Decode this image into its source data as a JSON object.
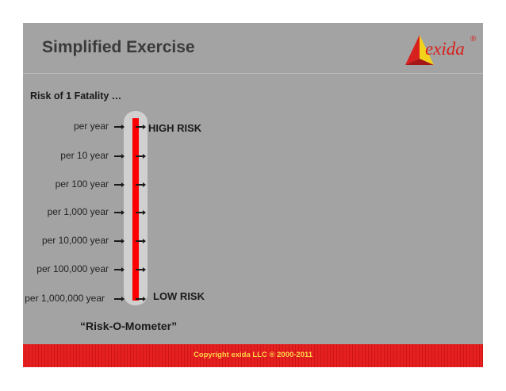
{
  "slide": {
    "title": "Simplified Exercise",
    "subtitle": "Risk of 1 Fatality …",
    "logo": {
      "text": "exida",
      "reg": "®",
      "colors": {
        "red": "#d8201f",
        "yellow": "#f2d21b"
      }
    },
    "scale_labels": [
      "per year",
      "per 10 year",
      "per 100 year",
      "per 1,000 year",
      "per 10,000 year",
      "per 100,000 year",
      "per 1,000,000 year"
    ],
    "high_risk": "HIGH RISK",
    "low_risk": "LOW RISK",
    "caption": "“Risk-O-Mometer”",
    "footer": {
      "copyright": "Copyright exida LLC ® 2000-2011"
    }
  },
  "colors": {
    "background": "#a3a3a3",
    "mercury": "#ff0000",
    "footer": "#e62020",
    "copyright": "#ffd24a"
  }
}
